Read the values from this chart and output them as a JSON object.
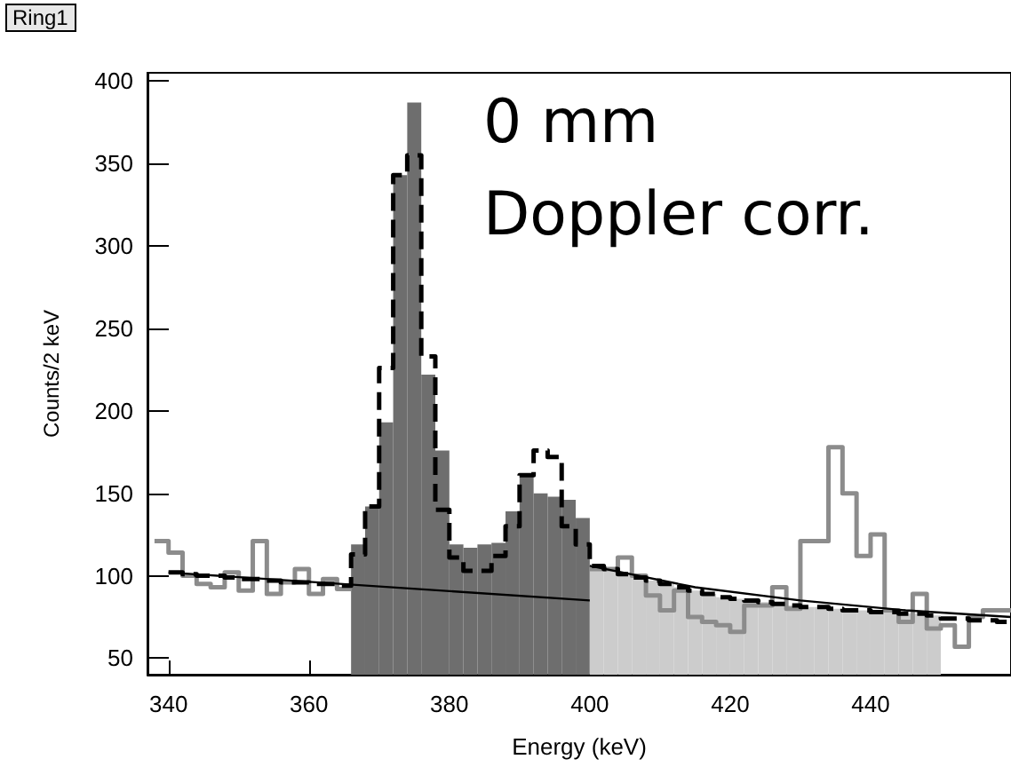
{
  "chart_data": {
    "type": "histogram",
    "title": "Ring1",
    "xlabel": "Energy (keV)",
    "ylabel": "Counts/2 keV",
    "annotations": [
      "0 mm",
      "Doppler corr."
    ],
    "bins": [
      366,
      368,
      370,
      372,
      374,
      376,
      378,
      380,
      382,
      384,
      386,
      388,
      390,
      392,
      394,
      396,
      398,
      400,
      402,
      404,
      406,
      408,
      410,
      412,
      414,
      416,
      418,
      420,
      422,
      424,
      426,
      428,
      430,
      432,
      434,
      436,
      438,
      440,
      442,
      444,
      446,
      448,
      450
    ],
    "series": [
      {
        "type": "histogram",
        "color": "#6e6e6e",
        "values": [
          119,
          142,
          193,
          343,
          387,
          222,
          176,
          119,
          117,
          119,
          120,
          139,
          161,
          150,
          148,
          146,
          135,
          null,
          null,
          null,
          null,
          null,
          null,
          null,
          null,
          null,
          null,
          null,
          null,
          null,
          null,
          null,
          null,
          null,
          null,
          null,
          null,
          null,
          null,
          null,
          null,
          null
        ]
      },
      {
        "type": "histogram",
        "color": "#cccccc",
        "values": [
          null,
          null,
          null,
          null,
          null,
          null,
          null,
          null,
          null,
          null,
          null,
          null,
          null,
          null,
          null,
          null,
          null,
          106,
          104,
          101,
          99,
          97,
          95,
          93,
          91,
          89,
          87,
          86,
          85,
          84,
          83,
          82,
          81,
          81,
          80,
          79,
          79,
          78,
          78,
          77,
          77,
          76
        ]
      },
      {
        "type": "step",
        "color": "#8c8c8c",
        "line_style": "solid",
        "x": [
          338,
          340,
          342,
          344,
          346,
          348,
          350,
          352,
          354,
          356,
          358,
          360,
          362,
          364,
          366,
          383,
          400,
          402,
          404,
          406,
          408,
          410,
          412,
          414,
          416,
          418,
          420,
          422,
          424,
          426,
          428,
          430,
          432,
          434,
          436,
          438,
          440,
          442,
          444,
          446,
          448,
          450,
          452,
          454,
          456,
          458,
          460
        ],
        "values": [
          121,
          114,
          100,
          95,
          93,
          102,
          91,
          121,
          89,
          96,
          104,
          89,
          98,
          92,
          92,
          null,
          104,
          104,
          111,
          100,
          88,
          79,
          91,
          75,
          72,
          70,
          66,
          82,
          82,
          93,
          80,
          121,
          121,
          178,
          150,
          112,
          125,
          79,
          72,
          89,
          68,
          70,
          57,
          75,
          79,
          79,
          79
        ]
      },
      {
        "type": "step",
        "color": "#000000",
        "line_style": "dashed",
        "x": [
          340,
          342,
          344,
          346,
          348,
          350,
          352,
          354,
          356,
          358,
          360,
          362,
          364,
          366,
          368,
          370,
          372,
          374,
          376,
          378,
          380,
          382,
          384,
          386,
          388,
          390,
          392,
          394,
          396,
          398,
          400,
          402,
          404,
          406,
          408,
          410,
          412,
          414,
          416,
          418,
          420,
          422,
          424,
          426,
          428,
          430,
          432,
          434,
          436,
          438,
          440,
          442,
          444,
          446,
          448,
          450,
          452,
          454,
          456,
          458,
          460
        ],
        "values": [
          102,
          101,
          100,
          100,
          99,
          98,
          98,
          97,
          96,
          96,
          95,
          95,
          94,
          113,
          142,
          226,
          343,
          355,
          233,
          140,
          111,
          103,
          103,
          112,
          130,
          161,
          176,
          172,
          130,
          119,
          106,
          104,
          101,
          99,
          97,
          95,
          93,
          91,
          89,
          87,
          86,
          85,
          84,
          83,
          82,
          81,
          81,
          80,
          79,
          79,
          78,
          78,
          77,
          77,
          76,
          74,
          74,
          73,
          73,
          72,
          72
        ]
      },
      {
        "type": "line",
        "color": "#000000",
        "x": [
          340,
          400
        ],
        "values": [
          102,
          85
        ]
      },
      {
        "type": "line",
        "color": "#000000",
        "x": [
          400,
          415,
          430,
          445,
          460
        ],
        "values": [
          106,
          93,
          85,
          79,
          75
        ]
      }
    ],
    "xlim": [
      337,
      460
    ],
    "xticks": [
      340,
      360,
      380,
      400,
      420,
      440
    ],
    "ylim": [
      40,
      405
    ],
    "yticks": [
      50,
      100,
      150,
      200,
      250,
      300,
      350,
      400
    ],
    "grid": false
  }
}
